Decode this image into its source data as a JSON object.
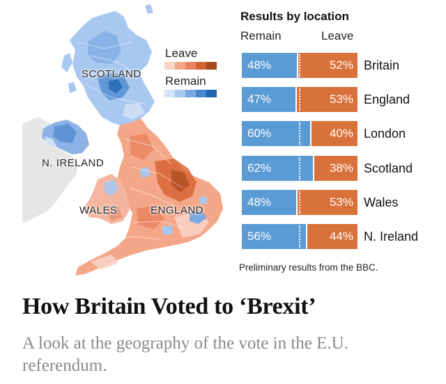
{
  "map": {
    "labels": {
      "scotland": "SCOTLAND",
      "n_ireland": "N. IRELAND",
      "wales": "WALES",
      "england": "ENGLAND"
    },
    "legend": {
      "leave_label": "Leave",
      "remain_label": "Remain",
      "leave_colors": [
        "#f9d3c4",
        "#f3a788",
        "#e8835f",
        "#d4622f",
        "#a84a1d"
      ],
      "remain_colors": [
        "#d4e3f7",
        "#a9c8ef",
        "#7aa9e2",
        "#4a86cf",
        "#1f66b0"
      ]
    },
    "colors": {
      "neighbor_land": "#e6e6e6",
      "remain_accent": "#5b9bd5",
      "leave_accent": "#d9713a"
    }
  },
  "results": {
    "title": "Results by location",
    "remain_header": "Remain",
    "leave_header": "Leave",
    "rows": [
      {
        "place": "Britain",
        "remain_text": "48%",
        "leave_text": "52%"
      },
      {
        "place": "England",
        "remain_text": "47%",
        "leave_text": "53%"
      },
      {
        "place": "London",
        "remain_text": "60%",
        "leave_text": "40%"
      },
      {
        "place": "Scotland",
        "remain_text": "62%",
        "leave_text": "38%"
      },
      {
        "place": "Wales",
        "remain_text": "48%",
        "leave_text": "53%"
      },
      {
        "place": "N. Ireland",
        "remain_text": "56%",
        "leave_text": "44%"
      }
    ],
    "source_note": "Preliminary results from the BBC."
  },
  "chart_data": {
    "type": "bar",
    "title": "Results by location",
    "categories": [
      "Britain",
      "England",
      "London",
      "Scotland",
      "Wales",
      "N. Ireland"
    ],
    "series": [
      {
        "name": "Remain",
        "values": [
          48,
          47,
          60,
          62,
          48,
          56
        ],
        "color": "#5b9bd5"
      },
      {
        "name": "Leave",
        "values": [
          52,
          53,
          40,
          38,
          53,
          44
        ],
        "color": "#d9713a"
      }
    ],
    "orientation": "horizontal",
    "stacked": true,
    "ylim": [
      0,
      100
    ],
    "grid": false
  },
  "article": {
    "headline": "How Britain Voted to ‘Brexit’",
    "summary": "A look at the geography of the vote in the E.U. referendum."
  }
}
